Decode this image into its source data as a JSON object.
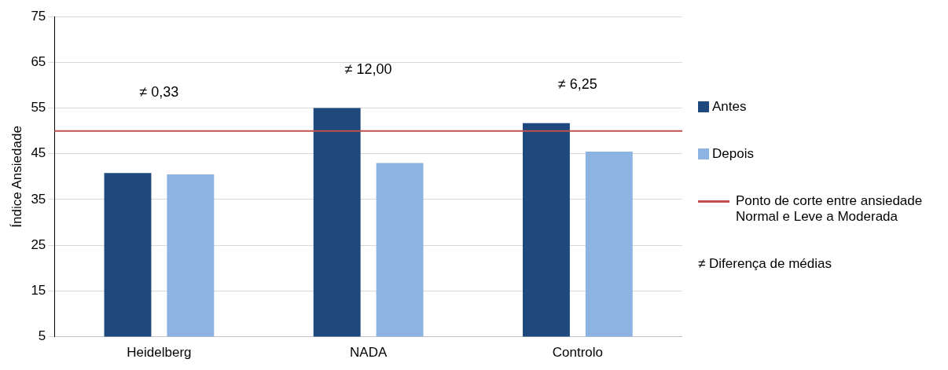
{
  "chart_data": {
    "type": "bar",
    "ylabel": "Índice Ansiedade",
    "categories": [
      "Heidelberg",
      "NADA",
      "Controlo"
    ],
    "series": [
      {
        "name": "Antes",
        "color": "#1f497d",
        "values": [
          40.8,
          55,
          51.7
        ]
      },
      {
        "name": "Depois",
        "color": "#8db3e2",
        "values": [
          40.5,
          43,
          45.5
        ]
      }
    ],
    "ylim": [
      5,
      75
    ],
    "yticks": [
      5,
      15,
      25,
      35,
      45,
      55,
      65,
      75
    ],
    "grid": "y",
    "legend": "right",
    "ref_lines": [
      {
        "axis": "y",
        "value": 50,
        "label": "Ponto de corte entre ansiedade Normal e Leve a Moderada",
        "color": "#c0504d"
      }
    ],
    "annotations": [
      "≠ 0,33",
      "≠ 12,00",
      "≠ 6,25",
      "≠ Diferença de médias"
    ]
  }
}
